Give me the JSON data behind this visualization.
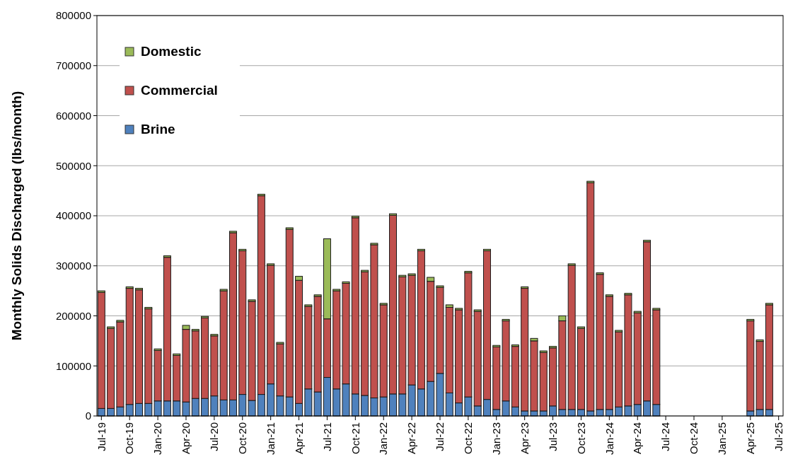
{
  "chart_data": {
    "type": "bar",
    "stacked": true,
    "ylabel": "Monthly Solids Discharged (lbs/month)",
    "categories": [
      "Jul-19",
      null,
      null,
      "Oct-19",
      null,
      null,
      "Jan-20",
      null,
      null,
      "Apr-20",
      null,
      null,
      "Jul-20",
      null,
      null,
      "Oct-20",
      null,
      null,
      "Jan-21",
      null,
      null,
      "Apr-21",
      null,
      null,
      "Jul-21",
      null,
      null,
      "Oct-21",
      null,
      null,
      "Jan-22",
      null,
      null,
      "Apr-22",
      null,
      null,
      "Jul-22",
      null,
      null,
      "Oct-22",
      null,
      null,
      "Jan-23",
      null,
      null,
      "Apr-23",
      null,
      null,
      "Jul-23",
      null,
      null,
      "Oct-23",
      null,
      null,
      "Jan-24",
      null,
      null,
      "Apr-24",
      null,
      null,
      "Jul-24",
      null,
      null,
      "Oct-24",
      null,
      null,
      "Jan-25",
      null,
      null,
      "Apr-25",
      null,
      null,
      "Jul-25"
    ],
    "series": [
      {
        "name": "Brine",
        "color": "#4f81bd",
        "values": [
          15000,
          15000,
          18000,
          23000,
          25000,
          25000,
          30000,
          30000,
          30000,
          28000,
          35000,
          35000,
          40000,
          32000,
          32000,
          43000,
          31000,
          43000,
          64000,
          40000,
          38000,
          25000,
          54000,
          48000,
          77000,
          54000,
          64000,
          44000,
          41000,
          36000,
          38000,
          44000,
          44000,
          62000,
          54000,
          69000,
          85000,
          46000,
          26000,
          38000,
          20000,
          33000,
          13000,
          30000,
          18000,
          10000,
          10000,
          10000,
          20000,
          13000,
          13000,
          13000,
          10000,
          13000,
          13000,
          18000,
          20000,
          23000,
          30000,
          23000,
          null,
          null,
          null,
          null,
          null,
          null,
          null,
          null,
          null,
          10000,
          13000,
          13000,
          null
        ]
      },
      {
        "name": "Commercial",
        "color": "#c0504d",
        "values": [
          232000,
          160000,
          170000,
          232000,
          227000,
          189000,
          101000,
          287000,
          91000,
          145000,
          135000,
          161000,
          120000,
          218000,
          334000,
          287000,
          198000,
          397000,
          237000,
          104000,
          335000,
          246000,
          165000,
          191000,
          117000,
          196000,
          201000,
          352000,
          247000,
          306000,
          184000,
          357000,
          234000,
          219000,
          276000,
          200000,
          172000,
          171000,
          186000,
          248000,
          189000,
          297000,
          125000,
          160000,
          121000,
          245000,
          140000,
          117000,
          116000,
          177000,
          288000,
          162000,
          456000,
          270000,
          226000,
          150000,
          222000,
          183000,
          318000,
          189000,
          null,
          null,
          null,
          null,
          null,
          null,
          null,
          null,
          null,
          180000,
          136000,
          209000,
          null
        ]
      },
      {
        "name": "Domestic",
        "color": "#9bbb59",
        "values": [
          3000,
          3000,
          3000,
          3000,
          3000,
          3000,
          3000,
          3000,
          3000,
          8000,
          3000,
          3000,
          3000,
          3000,
          3000,
          3000,
          3000,
          3000,
          3000,
          3000,
          3000,
          8000,
          3000,
          3000,
          160000,
          3000,
          3000,
          3000,
          3000,
          3000,
          3000,
          3000,
          3000,
          3000,
          3000,
          8000,
          3000,
          5000,
          3000,
          3000,
          3000,
          3000,
          3000,
          3000,
          3000,
          3000,
          5000,
          3000,
          3000,
          10000,
          3000,
          3000,
          3000,
          3000,
          3000,
          3000,
          3000,
          3000,
          3000,
          3000,
          null,
          null,
          null,
          null,
          null,
          null,
          null,
          null,
          null,
          3000,
          3000,
          3000,
          null
        ]
      }
    ],
    "ylim": [
      0,
      800000
    ],
    "yticks": [
      0,
      100000,
      200000,
      300000,
      400000,
      500000,
      600000,
      700000,
      800000
    ],
    "grid": "y",
    "legend": "top left"
  }
}
